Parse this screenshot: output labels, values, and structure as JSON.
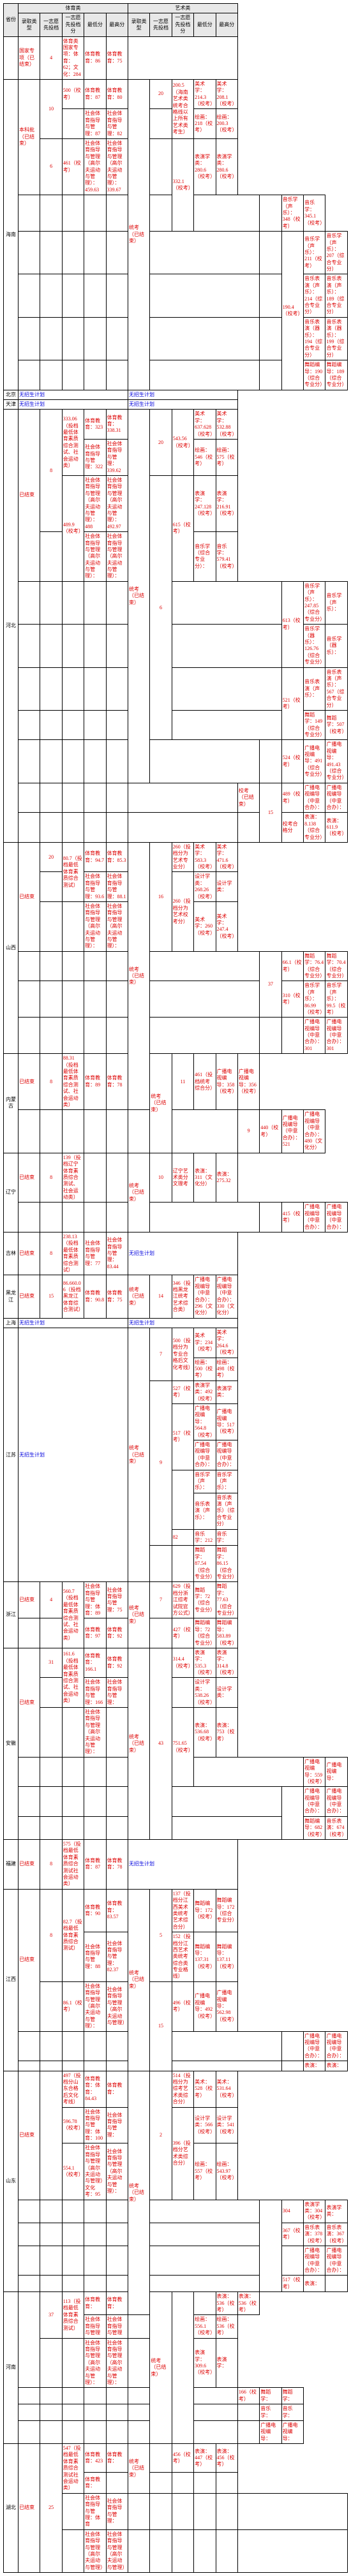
{
  "headers": {
    "province": "省份",
    "pe": "体育类",
    "art": "艺术类",
    "req": "录取类型",
    "line1": "一志愿先投档",
    "line2": "一志愿先投档分",
    "low": "最低分",
    "high": "最高分"
  },
  "blue": "无招生计划",
  "rows": [
    {
      "prov": "",
      "pe": [
        {
          "req": "国家专项（已结束）",
          "l1": "4",
          "l2": "体育类国家专项：体育：62；文化：284",
          "low": "体育教育：86",
          "high": "体育教育：75"
        }
      ],
      "art": []
    },
    {
      "prov": "海南",
      "pe": [
        {
          "req": "本科批（已结束）",
          "rs": 3,
          "l1": "10",
          "rs1": 2,
          "l2": "500（校考）",
          "low": "体育教育：87",
          "high": "体育教育：80"
        },
        {
          "low": "社会体育指导与管理：87",
          "high": "社会体育指导与管理：82"
        },
        {
          "l1": "6",
          "l2": "461（校考）",
          "low": "社会体育指导与管理（高尔夫运动与管理）：459.63",
          "high": "社会体育指导与管理（高尔夫运动与管理）：339.67"
        }
      ],
      "art": [
        {
          "req": "统考（已结束）",
          "l1": "20",
          "rs": 8,
          "l2": "200.5（海南艺术类统考合格线以上所有艺术类考生）",
          "rs2": 2,
          "low": "美术学：214.3（校考）",
          "high": "美术学：208.1（校考）"
        },
        {
          "low": "绘画：218（校考）",
          "high": "绘画：200.3（校考）"
        },
        {
          "l2": "332.1（校考）",
          "rs2": 2,
          "low": "表演学类：280.6（校考）",
          "high": "表演学类：280.6（校考）"
        },
        {
          "low": "音乐学（声乐）：348（校考）",
          "high": "音乐学：345.1（校考）"
        },
        {
          "l2": "190.4（校考）",
          "rs2": 4,
          "low": "音乐学（声乐）：211（校考）",
          "high": "音乐学（声乐）：207（综合专业分）"
        },
        {
          "low": "音乐表演（声乐）：214（综合专业分）",
          "high": "音乐表演（声乐）：189（综合专业分）"
        },
        {
          "low": "音乐表演（器乐）：194（综合专业分）",
          "high": "音乐表演（器乐）：199（综合专业分）"
        },
        {
          "low": "舞蹈编导：190（综合专业分）",
          "high": "舞蹈编导：189（综合专业分）"
        }
      ]
    },
    {
      "prov": "北京",
      "pe": [
        {
          "blue": true,
          "span": 5
        }
      ],
      "art": [
        {
          "blue": true,
          "span": 5
        }
      ]
    },
    {
      "prov": "天津",
      "pe": [
        {
          "blue": true,
          "span": 5
        }
      ],
      "art": [
        {
          "blue": true,
          "span": 5
        }
      ]
    },
    {
      "prov": "河北",
      "pe": [
        {
          "req": "已结束",
          "rs": 4,
          "l1": "8",
          "rs1": 3,
          "l2": "333.06（投档最低体育素质综合测试、社会运动类）",
          "rs2": 2,
          "low": "体育教育：323",
          "high": "体育教育：338.31"
        },
        {
          "low": "社会体育指导与管理：322",
          "high": "社会体育指导与管理：339.62"
        },
        {
          "l2": "489.9（校考）",
          "rs2": 2,
          "low": "社会体育指导与管理（高尔夫运动与管理）：488",
          "high": "社会体育指导与管理（高尔夫运动与管理）：492.97"
        },
        {
          "low": "社会体育指导与管理（高尔夫运动与管理）：",
          "high": "社会体育指导与管理（高尔夫运动与管理）："
        }
      ],
      "art": [
        {
          "req": "统考（已结束）",
          "rs": 9,
          "l1": "20",
          "rs1": 2,
          "l2": "543.56（校考）",
          "rs2": 2,
          "low": "美术学：637.628（校考）",
          "high": "美术学：532.88（校考）"
        },
        {
          "low": "绘画：546（校考）",
          "high": "绘画：575（校考）"
        },
        {
          "l1": "6",
          "rs1": 6,
          "l2": "615（校考）",
          "rs2": 2,
          "low": "表演学：247.128（校考）",
          "high": "表演学：216.91（校考）"
        },
        {
          "low": "音乐学（综合专业分）：",
          "high": "音乐学：579.41（校考）"
        },
        {
          "l2": "613（校考）",
          "rs2": 2,
          "low": "音乐学（声乐）：247.85（综合专业分）",
          "high": "音乐学（声乐）："
        },
        {
          "low": "音乐学（器乐）：126.76（综合专业分）",
          "high": "音乐学（器乐）："
        },
        {
          "l2": "521（校考）",
          "rs2": 2,
          "low": "音乐表演（声乐）：",
          "high": "音乐表演（声乐）：567（综合专业分）"
        },
        {
          "low": "舞蹈学：149（综合专业分）",
          "high": "舞蹈学：507（校考）"
        },
        {
          "l2": "524（校考）",
          "low": "广播电视编导：491（综合专业分）",
          "high": "广播电视编导：491.43（综合专业分）"
        },
        {
          "req": "校考（已结束）",
          "l1": "15",
          "rs1": 2,
          "l2": "489（校考）",
          "low": "广播电视编导（中意合办）：",
          "high": "广播电视编导（中意合办）："
        },
        {
          "l2": "校考合格分",
          "low": "表演：8.138（综合专业分）",
          "high": "表演：611.9（校考）"
        }
      ]
    },
    {
      "prov": "山西",
      "pe": [
        {
          "req": "已结束",
          "rs": 3,
          "l1": "20",
          "l2": "80.7（投档最低体育素质综合测试）",
          "rs2": 2,
          "low": "体育教育：94.7",
          "high": "体育教育：85.3"
        },
        {
          "low": "社会体育指导与管理：93.6",
          "high": "社会体育指导与管理：88.1"
        },
        {
          "l1": "",
          "l2": "",
          "low": "社会体育指导与管理（高尔夫运动与管理）：",
          "high": "社会体育指导与管理（高尔夫运动与管理）："
        }
      ],
      "art": [
        {
          "req": "统考（已结束）",
          "rs": 7,
          "l1": "16",
          "rs1": 3,
          "l2": "260（投档分为艺术专业分）",
          "low": "美术学：583.3（校考）",
          "high": "美术学：471.6（校考）"
        },
        {
          "l2": "260（投档分为艺术校考分）",
          "rs2": 2,
          "low": "设计学类：268.26（校考）",
          "high": "设计学类："
        },
        {
          "l2": "",
          "low": "美术学：260（校考）",
          "high": "美术学：247.4（校考）"
        },
        {
          "l1": "37",
          "rs1": 2,
          "l2": "66.1（校考）",
          "low": "舞蹈学：76.4（综合专业分）",
          "high": "舞蹈学：70.4（综合专业分）"
        },
        {
          "l2": "310（校考）",
          "low": "音乐学（声乐）：86.99（校考）",
          "high": "音乐学（声乐）：99.5（校考）"
        },
        {
          "l1": "",
          "l2": "",
          "low": "广播电视编导（中意合办）：301",
          "high": "广播电视编导（中意合办）：301"
        }
      ]
    },
    {
      "prov": "内蒙古",
      "pe": [
        {
          "req": "已结束",
          "l1": "8",
          "l2": "88.31（投档最低体育素质综合测试、社会运动类）",
          "low": "体育教育：89",
          "high": "体育教育：78"
        }
      ],
      "art": [
        {
          "req": "统考（已结束）",
          "rs": 2,
          "l1": "11",
          "l2": "461（投档统考综合分）",
          "low": "广播电视编导：358（校考）",
          "high": "广播电视编导：356（校考）"
        },
        {
          "l1": "9",
          "l2": "440（校考）",
          "low": "广播电视编导（中意合办）：521",
          "high": "广播电视编导（中意合办）：480（文化分）"
        }
      ]
    },
    {
      "prov": "辽宁",
      "pe": [
        {
          "req": "已结束",
          "l1": "8",
          "l2": "139（投档辽宁体育素质综合测试、社会运动类）",
          "low": "",
          "high": ""
        }
      ],
      "art": [
        {
          "req": "统考（已结束）",
          "rs": 2,
          "l1": "10",
          "l2": "辽宁艺术类分文理考",
          "low": "表演：311（文化分）",
          "high": "表演：275.32"
        },
        {
          "l1": "",
          "l2": "415（校考）",
          "low": "广播电视编导（中意合办）：",
          "high": "广播电视编导（中意合办）："
        }
      ]
    },
    {
      "prov": "吉林",
      "pe": [
        {
          "req": "已结束",
          "l1": "8",
          "l2": "238.13（投档最低体育素质综合测试）",
          "low": "社会体育指导与管理：77",
          "high": "社会体育指导与管理：83.44"
        }
      ],
      "art": [
        {
          "blue": true,
          "span": 5
        }
      ]
    },
    {
      "prov": "黑龙江",
      "pe": [
        {
          "req": "已结束",
          "l1": "15",
          "l2": "86.660.06（投档黑龙江体育综合测试）",
          "low": "体育教育：90.8",
          "high": "体育教育：75"
        }
      ],
      "art": [
        {
          "req": "统考（已结束）",
          "l1": "14",
          "l2": "346（投档黑龙江统考艺术综合类）",
          "low": "广播电视编导（中意合办）：296（文化分）",
          "high": "广播电视编导（中意合办）：330（文化分）"
        }
      ]
    },
    {
      "prov": "上海",
      "pe": [
        {
          "blue": true,
          "span": 5
        }
      ],
      "art": [
        {
          "blue": true,
          "span": 5
        }
      ]
    },
    {
      "prov": "江苏",
      "pe": [
        {
          "blue": true,
          "span": 5
        }
      ],
      "art": [
        {
          "req": "统考（已结束）",
          "rs": 9,
          "l1": "7",
          "rs1": 2,
          "l2": "500（投档分为专业合格后文化考线）",
          "rs2": 2,
          "low": "美术学：234（校考）",
          "high": "美术学：264.6（校考）"
        },
        {
          "low": "绘画：500（校考）",
          "high": "绘画：498（校考）"
        },
        {
          "l1": "9",
          "rs1": 6,
          "l2": "527（校考）",
          "low": "表演学类：492（校考）",
          "high": "表演学类："
        },
        {
          "l2": "517（校考）",
          "rs2": 2,
          "low": "广播电视编导：564.8（校考）",
          "high": "广播电视编导：517（校考）"
        },
        {
          "low": "广播电视编导（中意合办）：",
          "high": "广播电视编导（中意合办）："
        },
        {
          "l2": "",
          "rs2": 2,
          "low": "音乐学（声乐）：",
          "high": "音乐学（声乐）："
        },
        {
          "low": "音乐表演（声乐）：",
          "high": "音乐表演（声乐）（综合专业分）"
        },
        {
          "req": "统考（已结束）",
          "l1": "",
          "l2": "82",
          "low": "音乐学：212",
          "high": "音乐学："
        },
        {
          "l2": "",
          "low": "舞蹈学：87.54（综合专业分）",
          "high": "舞蹈学：86.15（综合专业分）"
        }
      ]
    },
    {
      "prov": "浙江",
      "pe": [
        {
          "req": "已结束",
          "l1": "4",
          "l2": "560.7（投档最低体育素质综合测试、社会运动类）",
          "rs2": 2,
          "low": "社会体育指导与管理：体育：89",
          "high": "社会体育指导与管理：75"
        },
        {
          "low": "体育教育：97",
          "high": "体育教育：92"
        }
      ],
      "art": [
        {
          "req": "统考（已结束）",
          "rs": 2,
          "l1": "7",
          "l2": "629（投档分浙江综考试院官方公式）",
          "low": "舞蹈学：72（综合专业分）",
          "high": "舞蹈学：77.63（综合专业分）"
        },
        {
          "l1": "",
          "l2": "427（校考）",
          "low": "舞蹈编导：72（综合专业分）",
          "high": "舞蹈编导：583.89（校考）"
        }
      ]
    },
    {
      "prov": "安徽",
      "pe": [
        {
          "req": "已结束",
          "rs": 3,
          "l1": "31",
          "l2": "161.6（投档最低体育素质综合测试、社会运动类）",
          "rs2": 2,
          "low": "体育教育：166.1",
          "high": "体育教育：92"
        },
        {
          "low": "社会体育指导与管理：166",
          "high": "社会体育指导与管理："
        },
        {
          "l1": "",
          "l2": "",
          "low": "社会体育指导与管理（高尔夫运动与管理）：",
          "high": ""
        }
      ],
      "art": [
        {
          "req": "统考（已结束）",
          "rs": 6,
          "l1": "43",
          "rs1": 6,
          "l2": "314.4（校考）",
          "low": "表演学：535.3（校考）",
          "high": "表演学：314.8（校考）"
        },
        {
          "l2": "",
          "low": "设计学类：538.26（校考）",
          "high": "设计学类："
        },
        {
          "l2": "751.65（校考）",
          "rs2": 2,
          "low": "表演：536.68（校考）",
          "high": "表演：753（校考）"
        },
        {
          "low": "广播电视编导：559（校考）",
          "high": "广播电视编导："
        },
        {
          "l2": "",
          "rs2": 2,
          "low": "广播电视编导（中意合办）：",
          "high": "广播电视编导（中意合办）："
        },
        {
          "low": "舞蹈编导：682（校考）",
          "high": "音乐表演：674（校考）"
        }
      ]
    },
    {
      "prov": "福建",
      "pe": [
        {
          "req": "已结束",
          "l1": "8",
          "l2": "575（投档最低体育素质综合测试社会运动类）",
          "low": "体育教育：87",
          "high": "体育教育：78"
        }
      ],
      "art": [
        {
          "blue": true,
          "span": 5
        }
      ]
    },
    {
      "prov": "江西",
      "pe": [
        {
          "req": "已结束",
          "rs": 3,
          "l1": "8",
          "rs1": 2,
          "l2": "82.7（投档最低体育素质综合测试）",
          "rs2": 2,
          "low": "体育教育：90",
          "high": "体育教育：83.57"
        },
        {
          "low": "社会体育指导与管理：88",
          "high": "社会体育指导与管理：82.37"
        },
        {
          "l1": "",
          "l2": "86.1（校考）",
          "low": "社会体育指导与管理（高尔夫运动与管理）：",
          "high": "社会体育指导与管理（高尔夫运动与管理）"
        }
      ],
      "art": [
        {
          "req": "统考（已结束）",
          "rs": 5,
          "l1": "5",
          "rs1": 2,
          "l2": "137（投档分江西美术类统考艺术综合分）",
          "low": "舞蹈编导：172（校考）",
          "high": "舞蹈编导：172（综合专业分）"
        },
        {
          "l2": "152（投档分江西艺术类统考综合类专业格线）",
          "low": "舞蹈编导：137.31（校考）",
          "high": "舞蹈编导：137.11（校考）"
        },
        {
          "l1": "15",
          "rs1": 3,
          "l2": "496（校考）",
          "low": "广播电视编导：492（校考）",
          "high": "广播电视编导：562.98（校考）"
        },
        {
          "l2": "",
          "low": "广播电视编导（中意合办）：",
          "high": "广播电视编导（中意合办）："
        },
        {
          "l2": "",
          "low": "表演：",
          "high": "表演："
        }
      ]
    },
    {
      "prov": "山东",
      "pe": [
        {
          "req": "已结束",
          "rs": 3,
          "l1": "",
          "rs1": 3,
          "l2": "497（投档分山东合格后文化考线）",
          "low": "体育教育：体育：84.43",
          "high": "体育教育："
        },
        {
          "l2": "596.78（校考）",
          "low": "社会体育指导与管理：体育：100",
          "high": "社会体育指导与管理："
        },
        {
          "l2": "554.1（校考）",
          "low": "社会体育指导与管理（高尔夫运动与管理）文化考：95",
          "high": "社会体育指导与管理（高尔夫运动与管理）："
        }
      ],
      "art": [
        {
          "req": "统考（已结束）",
          "rs": 8,
          "l1": "2",
          "rs1": 3,
          "l2": "514（投档分为综考艺术类综合分）",
          "low": "美术：528（校考）",
          "high": "美术：531.64（校考）"
        },
        {
          "l2": "396（投档分艺术类综合分）",
          "rs2": 2,
          "low": "设计学类：566（校考）",
          "high": "设计学类：541（校考）"
        },
        {
          "low": "绘画：557（校考）",
          "high": "绘画：543.97（校考）"
        },
        {
          "l1": "",
          "rs1": 4,
          "l2": "304",
          "low": "表演学类：304（校考）",
          "high": "表演学类："
        },
        {
          "l2": "367（校考）",
          "low": "音乐表演：378（校考）",
          "high": "音乐表演：367（校考）"
        },
        {
          "l2": "",
          "low": "广播电视编导（中意合办）：",
          "high": "广播电视编导（中意合办）："
        },
        {
          "l2": "517（校考）",
          "low": "表演：",
          "high": ""
        }
      ]
    },
    {
      "prov": "河南",
      "pe": [
        {
          "req": "",
          "rs": 3,
          "l1": "37",
          "rs1": 2,
          "l2": "113（投档最低体育素质综合测试）",
          "rs2": 2,
          "low": "体育教育：",
          "high": "体育教育："
        },
        {
          "low": "社会体育指导与管理",
          "high": "社会体育指导与管理"
        },
        {
          "l1": "",
          "l2": "",
          "low": "社会体育指导与管理（高尔夫运动与管理）：",
          "high": "社会体育指导与管理（高尔夫运动与管理）："
        }
      ],
      "art": [
        {
          "req": "统考（已结束）",
          "rs": 6,
          "l1": "",
          "rs1": 6,
          "l2": "",
          "low": "表演：536（校考）",
          "high": "表演：536（校考）"
        },
        {
          "l2": "",
          "low": "绘画：556.1（校考）",
          "high": "绘画：536（校考）"
        },
        {
          "l2": "",
          "low": "表演学：309.6（校考）",
          "high": "表演学："
        },
        {
          "l2": "166（校考）",
          "low": "舞蹈学：",
          "high": "舞蹈学："
        },
        {
          "l2": "",
          "low": "音乐学：",
          "high": "音乐学："
        },
        {
          "l2": "",
          "low": "广播电视编导：",
          "high": "广播电视编导："
        }
      ]
    },
    {
      "prov": "湖北",
      "pe": [
        {
          "req": "已结束",
          "rs": 4,
          "l1": "25",
          "rs1": 4,
          "l2": "547（投档最低体育素质综合测试社会运动类）",
          "rs2": 2,
          "low": "体育教育：423",
          "high": "体育教育："
        },
        {
          "low": "体育教育：",
          "high": ""
        },
        {
          "l2": "",
          "low": "社会体育指导与管理：体育",
          "high": "社会体育指导与管理："
        },
        {
          "l2": "",
          "low": "社会体育指导与管理（高尔夫运动与管理）",
          "high": "社会体育指导与管理（高尔夫运动与管理）"
        }
      ],
      "art": [
        {
          "req": "统考（已结束）",
          "rs": 2,
          "l1": "",
          "l2": "456（校考）",
          "low": "表演：447（校考）",
          "high": "表演：456（校考）"
        },
        {
          "l1": "",
          "l2": "",
          "low": "",
          "high": ""
        }
      ]
    }
  ]
}
